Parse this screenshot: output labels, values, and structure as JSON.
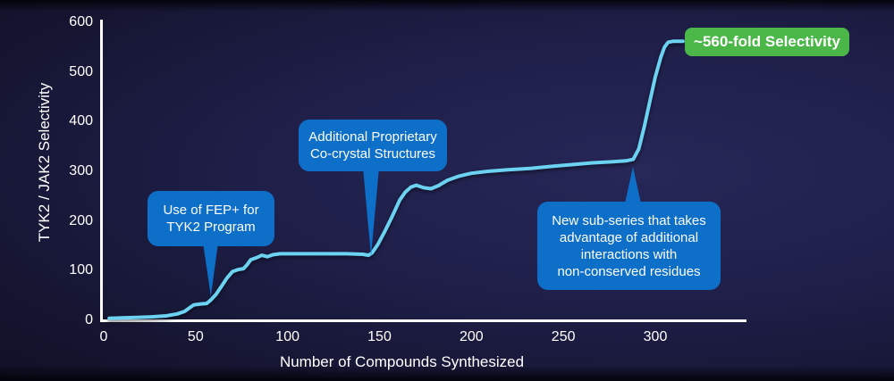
{
  "chart_data": {
    "type": "line",
    "title": "",
    "xlabel": "Number of Compounds Synthesized",
    "ylabel": "TYK2 / JAK2 Selectivity",
    "xlim": [
      0,
      349
    ],
    "ylim": [
      0,
      600
    ],
    "xticks": [
      0,
      50,
      100,
      150,
      200,
      250,
      300
    ],
    "yticks": [
      0,
      100,
      200,
      300,
      400,
      500,
      600
    ],
    "grid": false,
    "legend": "none",
    "line_color": "#6cd2f1",
    "axis_color": "#ffffff",
    "points": [
      [
        3,
        4
      ],
      [
        10,
        5
      ],
      [
        18,
        6
      ],
      [
        26,
        7
      ],
      [
        34,
        9
      ],
      [
        40,
        13
      ],
      [
        44,
        18
      ],
      [
        47,
        26
      ],
      [
        49,
        31
      ],
      [
        53,
        33
      ],
      [
        56,
        34
      ],
      [
        58,
        40
      ],
      [
        61,
        52
      ],
      [
        64,
        68
      ],
      [
        67,
        85
      ],
      [
        70,
        98
      ],
      [
        73,
        102
      ],
      [
        76,
        104
      ],
      [
        78,
        112
      ],
      [
        80,
        122
      ],
      [
        83,
        126
      ],
      [
        86,
        131
      ],
      [
        89,
        128
      ],
      [
        92,
        132
      ],
      [
        96,
        134
      ],
      [
        105,
        134
      ],
      [
        118,
        134
      ],
      [
        132,
        134
      ],
      [
        141,
        133
      ],
      [
        144,
        131
      ],
      [
        146,
        136
      ],
      [
        149,
        152
      ],
      [
        153,
        180
      ],
      [
        157,
        210
      ],
      [
        161,
        242
      ],
      [
        164,
        258
      ],
      [
        167,
        268
      ],
      [
        170,
        272
      ],
      [
        174,
        267
      ],
      [
        178,
        265
      ],
      [
        182,
        271
      ],
      [
        187,
        282
      ],
      [
        193,
        290
      ],
      [
        200,
        296
      ],
      [
        209,
        300
      ],
      [
        220,
        303
      ],
      [
        232,
        306
      ],
      [
        244,
        310
      ],
      [
        256,
        314
      ],
      [
        266,
        317
      ],
      [
        276,
        319
      ],
      [
        284,
        321
      ],
      [
        288,
        324
      ],
      [
        291,
        345
      ],
      [
        294,
        390
      ],
      [
        297,
        440
      ],
      [
        300,
        490
      ],
      [
        303,
        530
      ],
      [
        305,
        550
      ],
      [
        307,
        560
      ],
      [
        310,
        562
      ],
      [
        315,
        562
      ]
    ]
  },
  "annotations": {
    "callout_fep": {
      "text": "Use of FEP+ for\nTYK2 Program",
      "color": "#0d6fc8",
      "points_to_x": 60
    },
    "callout_cocrystal": {
      "text": "Additional Proprietary\nCo-crystal Structures",
      "color": "#0d6fc8",
      "points_to_x": 145
    },
    "callout_subseries": {
      "text": "New sub-series that takes\nadvantage of additional\ninteractions with\nnon-conserved residues",
      "color": "#0d6fc8",
      "points_to_x": 288
    },
    "badge": {
      "text": "~560-fold Selectivity",
      "color": "#4cb749"
    }
  },
  "colors": {
    "background_center": "#272758",
    "background_edge": "#090918",
    "text": "#ffffff"
  }
}
